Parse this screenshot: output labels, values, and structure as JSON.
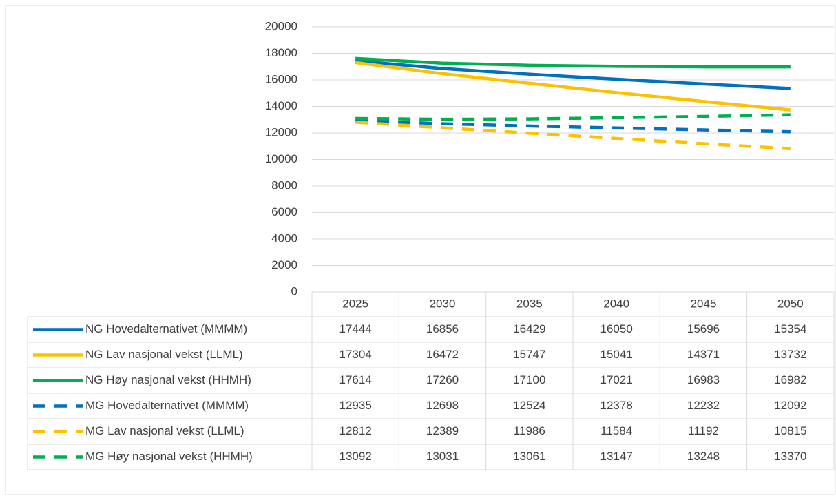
{
  "chart_data": {
    "type": "line",
    "categories": [
      "2025",
      "2030",
      "2035",
      "2040",
      "2045",
      "2050"
    ],
    "series": [
      {
        "name": "NG Hovedalternativet (MMMM)",
        "color": "#0070c0",
        "dashed": false,
        "values": [
          17444,
          16856,
          16429,
          16050,
          15696,
          15354
        ]
      },
      {
        "name": "NG Lav nasjonal vekst (LLML)",
        "color": "#ffc000",
        "dashed": false,
        "values": [
          17304,
          16472,
          15747,
          15041,
          14371,
          13732
        ]
      },
      {
        "name": "NG Høy nasjonal vekst (HHMH)",
        "color": "#00b050",
        "dashed": false,
        "values": [
          17614,
          17260,
          17100,
          17021,
          16983,
          16982
        ]
      },
      {
        "name": "MG Hovedalternativet (MMMM)",
        "color": "#0070c0",
        "dashed": true,
        "values": [
          12935,
          12698,
          12524,
          12378,
          12232,
          12092
        ]
      },
      {
        "name": "MG Lav nasjonal vekst (LLML)",
        "color": "#ffc000",
        "dashed": true,
        "values": [
          12812,
          12389,
          11986,
          11584,
          11192,
          10815
        ]
      },
      {
        "name": "MG Høy nasjonal vekst (HHMH)",
        "color": "#00b050",
        "dashed": true,
        "values": [
          13092,
          13031,
          13061,
          13147,
          13248,
          13370
        ]
      }
    ],
    "ylim": [
      0,
      20000
    ],
    "yticks": [
      0,
      2000,
      4000,
      6000,
      8000,
      10000,
      12000,
      14000,
      16000,
      18000,
      20000
    ],
    "grid": true,
    "data_table": true
  }
}
